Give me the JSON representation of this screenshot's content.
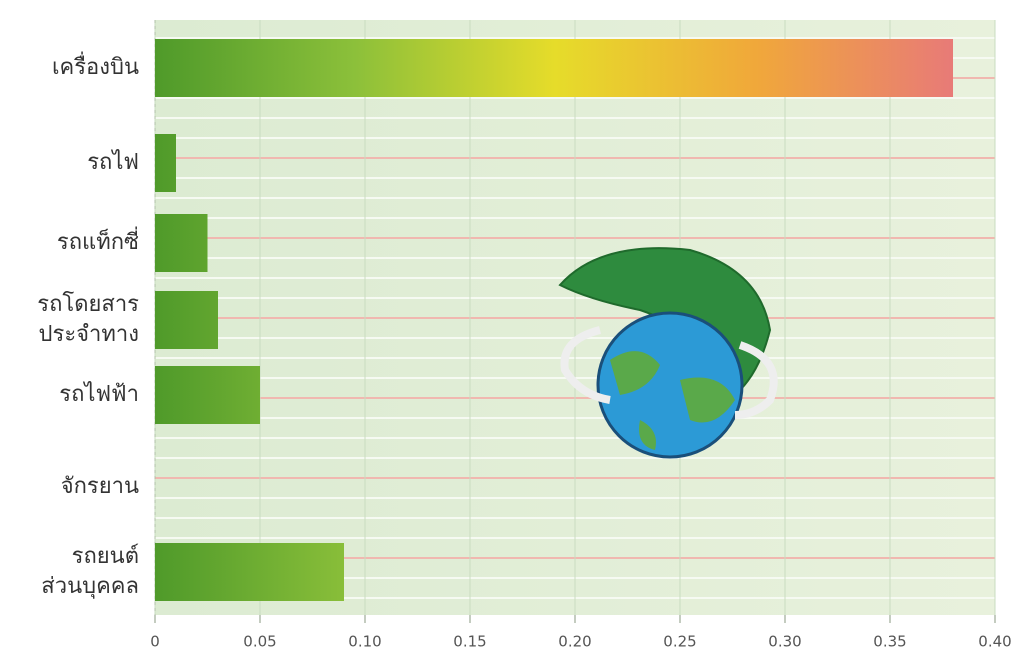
{
  "chart_data": {
    "type": "barh",
    "categories": [
      [
        "เครื่องบิน"
      ],
      [
        "รถไฟ"
      ],
      [
        "รถแท็กซี่"
      ],
      [
        "รถโดยสาร",
        "ประจำทาง"
      ],
      [
        "รถไฟฟ้า"
      ],
      [
        "จักรยาน"
      ],
      [
        "รถยนต์",
        "ส่วนบุคคล"
      ]
    ],
    "values": [
      0.38,
      0.01,
      0.025,
      0.03,
      0.05,
      0,
      0.09
    ],
    "colors": [
      "#4f9a2a",
      "#8cc03a",
      "#e6dc2a",
      "#f0a83a",
      "#e87a78"
    ],
    "xlim": [
      0,
      0.4
    ],
    "xticks": [
      0,
      0.05,
      {
        "value": 0.1,
        "label": "0.10"
      },
      0.15,
      {
        "value": 0.2,
        "label": "0.20"
      },
      0.25,
      {
        "value": 0.3,
        "label": "0.30"
      },
      0.35,
      {
        "value": 0.4,
        "label": "0.40"
      }
    ],
    "grid": true
  }
}
